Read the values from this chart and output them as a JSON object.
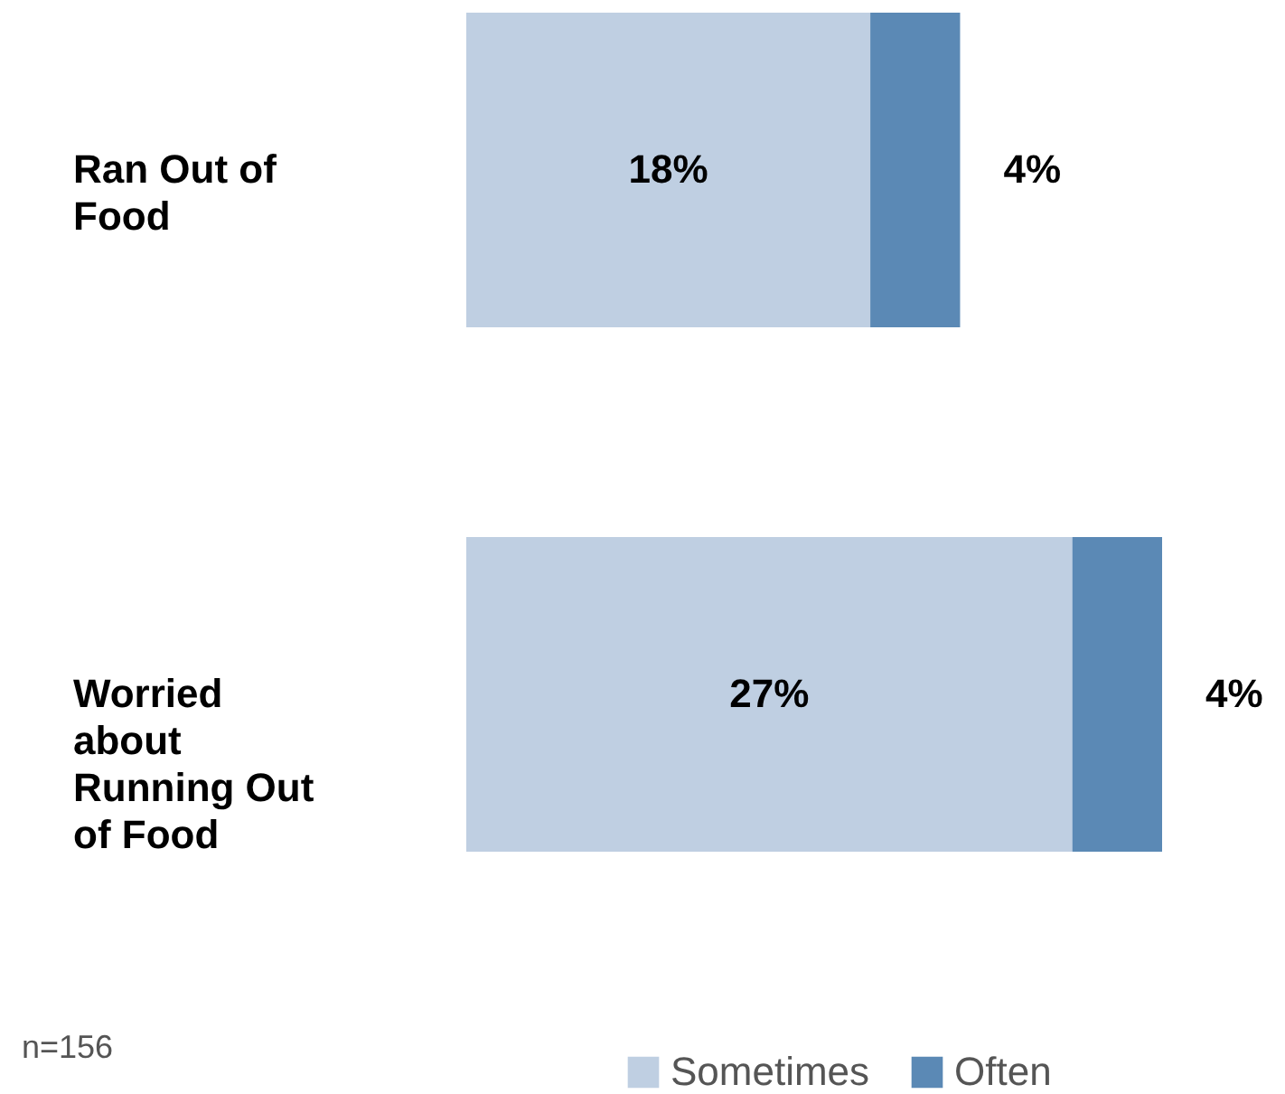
{
  "chart_data": {
    "type": "bar",
    "orientation": "horizontal",
    "stacked": true,
    "categories": [
      "Ran Out of Food",
      "Worried about Running Out of Food"
    ],
    "series": [
      {
        "name": "Sometimes",
        "color": "#bfcfe2",
        "values": [
          18,
          27
        ],
        "value_labels": [
          "18%",
          "27%"
        ]
      },
      {
        "name": "Often",
        "color": "#5b89b5",
        "values": [
          4,
          4
        ],
        "value_labels": [
          "4%",
          "4%"
        ]
      }
    ],
    "legend": "bottom right",
    "grid": false,
    "tick_labels": "y",
    "annotations": [
      "n=156"
    ]
  }
}
